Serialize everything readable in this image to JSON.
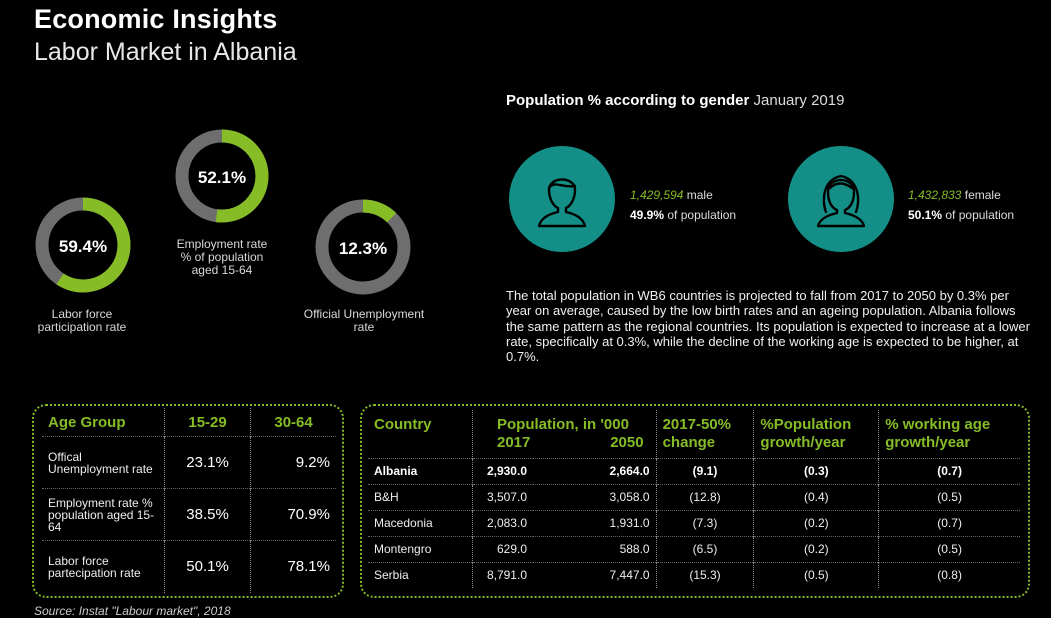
{
  "header": {
    "title": "Economic Insights",
    "subtitle": "Labor Market in Albania"
  },
  "donuts": [
    {
      "value_text": "59.4%",
      "fraction": 0.594,
      "label_lines": [
        "Labor force",
        "participation rate"
      ]
    },
    {
      "value_text": "52.1%",
      "fraction": 0.521,
      "label_lines": [
        "Employment rate",
        "% of population",
        "aged 15-64"
      ]
    },
    {
      "value_text": "12.3%",
      "fraction": 0.123,
      "label_lines": [
        "Official Unemployment",
        "rate"
      ]
    }
  ],
  "colors": {
    "accent": "#86bc25",
    "ring_bg": "#6e6e6e",
    "teal": "#138f87"
  },
  "population": {
    "heading_bold": "Population % according to gender",
    "heading_light": "January 2019",
    "male": {
      "count": "1,429,594",
      "label": "male",
      "pct": "49.9%",
      "pct_label": "of population",
      "icon": "male-head-icon"
    },
    "female": {
      "count": "1,432,833",
      "label": "female",
      "pct": "50.1%",
      "pct_label": "of population",
      "icon": "female-head-icon"
    },
    "paragraph": "The total population in WB6 countries is projected to fall from 2017 to 2050 by 0.3% per year on average, caused by the low birth rates and an ageing population. Albania follows the same pattern as the regional countries. Its population is expected to increase at a lower rate, specifically at 0.3%, while the decline of the working age is expected to be higher, at 0.7%."
  },
  "age_table": {
    "headers": [
      "Age Group",
      "15-29",
      "30-64"
    ],
    "rows": [
      {
        "label": "Offical Unemployment rate",
        "a": "23.1%",
        "b": "9.2%"
      },
      {
        "label": "Employment rate % population aged 15-64",
        "a": "38.5%",
        "b": "70.9%"
      },
      {
        "label": "Labor force partecipation rate",
        "a": "50.1%",
        "b": "78.1%"
      }
    ]
  },
  "country_table": {
    "headers": {
      "country": "Country",
      "population": "Population, in '000",
      "y2017": "2017",
      "y2050": "2050",
      "change_1": "2017-50%",
      "change_2": "change",
      "growth_1": "%Population",
      "growth_2": "growth/year",
      "working_1": "% working age",
      "working_2": "growth/year"
    },
    "rows": [
      {
        "country": "Albania",
        "p2017": "2,930.0",
        "p2050": "2,664.0",
        "change": "(9.1)",
        "growth": "(0.3)",
        "working": "(0.7)"
      },
      {
        "country": "B&H",
        "p2017": "3,507.0",
        "p2050": "3,058.0",
        "change": "(12.8)",
        "growth": "(0.4)",
        "working": "(0.5)"
      },
      {
        "country": "Macedonia",
        "p2017": "2,083.0",
        "p2050": "1,931.0",
        "change": "(7.3)",
        "growth": "(0.2)",
        "working": "(0.7)"
      },
      {
        "country": "Montengro",
        "p2017": "629.0",
        "p2050": "588.0",
        "change": "(6.5)",
        "growth": "(0.2)",
        "working": "(0.5)"
      },
      {
        "country": "Serbia",
        "p2017": "8,791.0",
        "p2050": "7,447.0",
        "change": "(15.3)",
        "growth": "(0.5)",
        "working": "(0.8)"
      }
    ]
  },
  "source": "Source: Instat \"Labour market\", 2018"
}
